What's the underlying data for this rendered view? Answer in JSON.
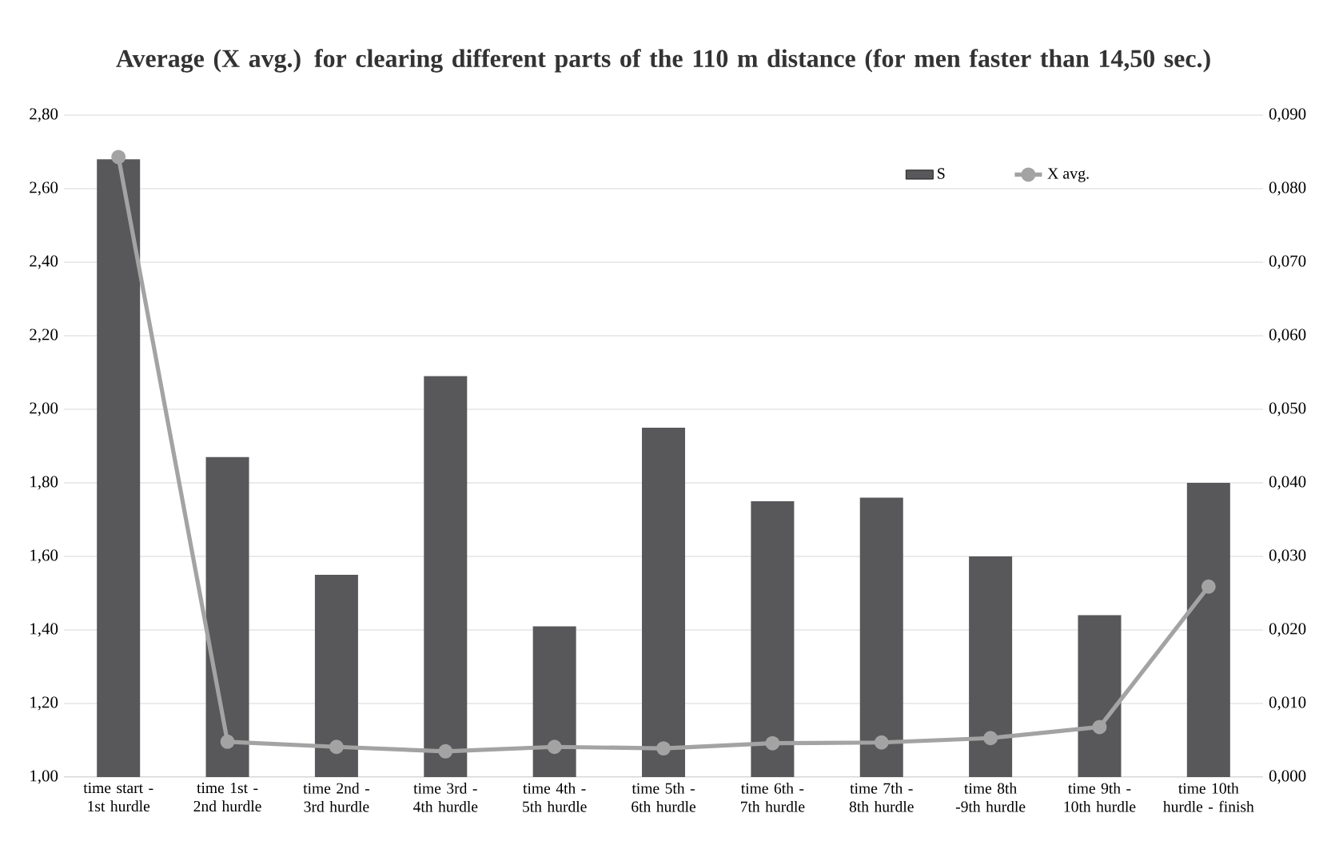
{
  "chart_data": {
    "type": "bar",
    "title": "Average (X avg.) for clearing different parts of the 110 m distance (for men faster than 14,50 sec.)",
    "categories": [
      "time start - 1st hurdle",
      "time 1st - 2nd hurdle",
      "time 2nd - 3rd hurdle",
      "time 3rd - 4th hurdle",
      "time 4th - 5th hurdle",
      "time 5th - 6th hurdle",
      "time 6th - 7th hurdle",
      "time 7th - 8th hurdle",
      "time 8th -9th hurdle",
      "time 9th - 10th hurdle",
      "time 10th hurdle - finish"
    ],
    "series": [
      {
        "name": "S",
        "axis": "y",
        "color": "#58585a",
        "values": [
          2.68,
          1.87,
          1.55,
          2.09,
          1.41,
          1.95,
          1.75,
          1.76,
          1.6,
          1.44,
          1.8
        ]
      },
      {
        "name": "X avg.",
        "type": "line",
        "axis": "y2",
        "color": "#a3a3a3",
        "marker": "circle",
        "values": [
          0.0843,
          0.0048,
          0.0041,
          0.0035,
          0.0041,
          0.0039,
          0.0046,
          0.0047,
          0.0053,
          0.0068,
          0.0259
        ]
      }
    ],
    "ylim": [
      1.0,
      2.8
    ],
    "yticks": [
      {
        "value": 1.0,
        "label": "1,00"
      },
      {
        "value": 1.2,
        "label": "1,20"
      },
      {
        "value": 1.4,
        "label": "1,40"
      },
      {
        "value": 1.6,
        "label": "1,60"
      },
      {
        "value": 1.8,
        "label": "1,80"
      },
      {
        "value": 2.0,
        "label": "2,00"
      },
      {
        "value": 2.2,
        "label": "2,20"
      },
      {
        "value": 2.4,
        "label": "2,40"
      },
      {
        "value": 2.6,
        "label": "2,60"
      },
      {
        "value": 2.8,
        "label": "2,80"
      }
    ],
    "y2lim": [
      0.0,
      0.09
    ],
    "y2ticks": [
      {
        "value": 0.0,
        "label": "0,000"
      },
      {
        "value": 0.01,
        "label": "0,010"
      },
      {
        "value": 0.02,
        "label": "0,020"
      },
      {
        "value": 0.03,
        "label": "0,030"
      },
      {
        "value": 0.04,
        "label": "0,040"
      },
      {
        "value": 0.05,
        "label": "0,050"
      },
      {
        "value": 0.06,
        "label": "0,060"
      },
      {
        "value": 0.07,
        "label": "0,070"
      },
      {
        "value": 0.08,
        "label": "0,080"
      },
      {
        "value": 0.09,
        "label": "0,090"
      }
    ],
    "grid": "y",
    "legend": "top right"
  }
}
